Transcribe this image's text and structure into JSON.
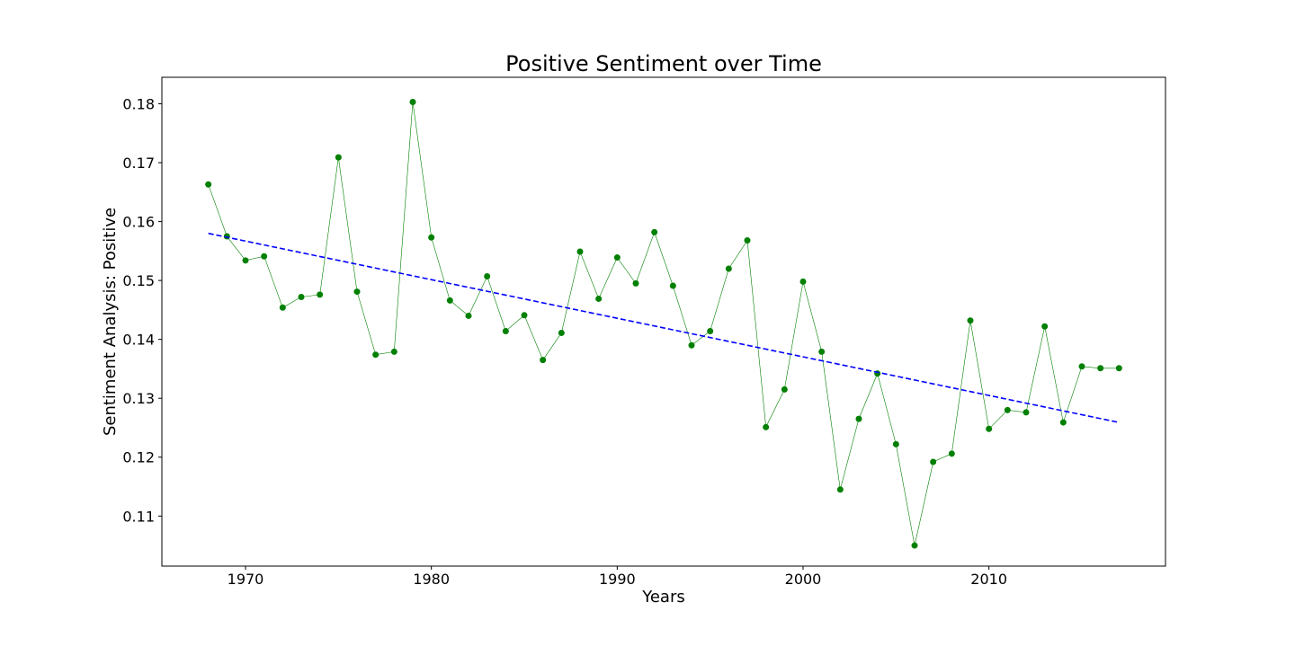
{
  "chart_data": {
    "type": "line",
    "title": "Positive Sentiment over Time",
    "xlabel": "Years",
    "ylabel": "Sentiment Analysis: Positive",
    "xlim": [
      1965.5,
      2019.5
    ],
    "ylim": [
      0.1015,
      0.1845
    ],
    "x_ticks": [
      1970,
      1980,
      1990,
      2000,
      2010
    ],
    "x_tick_labels": [
      "1970",
      "1980",
      "1990",
      "2000",
      "2010"
    ],
    "y_ticks": [
      0.11,
      0.12,
      0.13,
      0.14,
      0.15,
      0.16,
      0.17,
      0.18
    ],
    "y_tick_labels": [
      "0.11",
      "0.12",
      "0.13",
      "0.14",
      "0.15",
      "0.16",
      "0.17",
      "0.18"
    ],
    "grid": false,
    "legend": "none",
    "series": [
      {
        "marker": "circle",
        "color": "#008000",
        "x": [
          1968,
          1969,
          1970,
          1971,
          1972,
          1973,
          1974,
          1975,
          1976,
          1977,
          1978,
          1979,
          1980,
          1981,
          1982,
          1983,
          1984,
          1985,
          1986,
          1987,
          1988,
          1989,
          1990,
          1991,
          1992,
          1993,
          1994,
          1995,
          1996,
          1997,
          1998,
          1999,
          2000,
          2001,
          2002,
          2003,
          2004,
          2005,
          2006,
          2007,
          2008,
          2009,
          2010,
          2011,
          2012,
          2013,
          2014,
          2015,
          2016,
          2017
        ],
        "y": [
          0.1663,
          0.1575,
          0.1534,
          0.1541,
          0.1454,
          0.1472,
          0.1476,
          0.1709,
          0.1481,
          0.1374,
          0.1379,
          0.1803,
          0.1573,
          0.1466,
          0.144,
          0.1507,
          0.1414,
          0.1441,
          0.1365,
          0.1411,
          0.1549,
          0.1469,
          0.1539,
          0.1495,
          0.1582,
          0.1491,
          0.139,
          0.1414,
          0.152,
          0.1568,
          0.1251,
          0.1315,
          0.1498,
          0.1379,
          0.1145,
          0.1265,
          0.1342,
          0.1222,
          0.105,
          0.1192,
          0.1206,
          0.1432,
          0.1248,
          0.128,
          0.1276,
          0.1422,
          0.1259,
          0.1354,
          0.1351,
          0.1351
        ]
      },
      {
        "style": "dashed",
        "color": "#0000ff",
        "x": [
          1968,
          2017
        ],
        "y": [
          0.158,
          0.1259
        ]
      }
    ]
  }
}
